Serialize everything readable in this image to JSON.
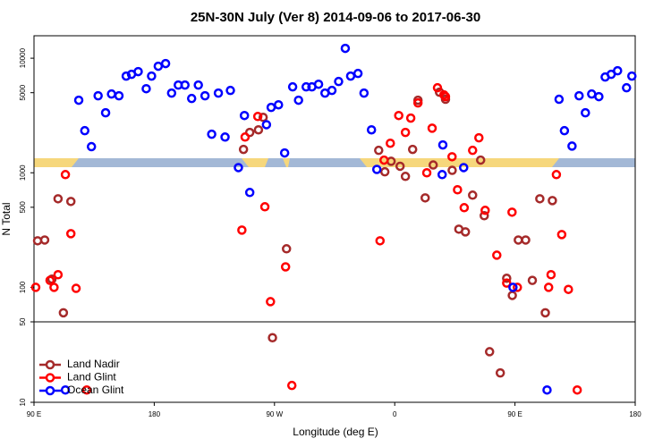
{
  "chart_data": {
    "type": "scatter",
    "title": "25N-30N July (Ver 8)   2014-09-06 to 2017-06-30",
    "x_label": "Longitude (deg E)",
    "y_label": "N Total",
    "xlim": [
      90,
      540
    ],
    "xticks": [
      {
        "value": 90,
        "label": "90 E"
      },
      180,
      {
        "value": 270,
        "label": "90 W"
      },
      {
        "value": 360,
        "label": "0"
      },
      {
        "value": 450,
        "label": "90 E"
      },
      {
        "value": 540,
        "label": "180"
      }
    ],
    "ylim": [
      50,
      15700
    ],
    "yticks": [
      50,
      100,
      500,
      1000,
      5000,
      10000
    ],
    "y_lower_lim": [
      10,
      50
    ],
    "y_lower_ticks": [
      10,
      50
    ],
    "log_scale": true,
    "legend": "bottom-left",
    "series": [
      {
        "name": "Land Nadir",
        "color": "#a52a2a",
        "x": [
          92.7,
          98,
          103.4,
          108,
          112,
          117.6,
          246.8,
          251.5,
          258,
          261.5,
          268.5,
          279,
          348,
          352.6,
          357.3,
          364,
          368,
          373.4,
          377.4,
          382.8,
          388.8,
          393.5,
          398,
          403,
          408,
          412.9,
          418.3,
          424.3,
          427,
          431,
          439,
          443.8,
          448,
          452.5,
          458,
          463,
          468.6,
          472.7,
          478
        ],
        "values": [
          255,
          259,
          118,
          593,
          60,
          562,
          1600,
          2250,
          2370,
          3050,
          36.4,
          217,
          1570,
          1020,
          1260,
          1140,
          930,
          1600,
          4300,
          604,
          1170,
          5050,
          4380,
          1050,
          322,
          305,
          638,
          1290,
          422,
          27.5,
          18,
          120,
          85,
          259,
          259,
          115,
          593,
          60,
          572
        ]
      },
      {
        "name": "Land Glint",
        "color": "#ff0000",
        "x": [
          91.3,
          102,
          105,
          108,
          113.5,
          117.6,
          121.5,
          129.5,
          245.6,
          248,
          257.5,
          262.8,
          267,
          278.3,
          283,
          349,
          352,
          356.7,
          363,
          368,
          372,
          377.4,
          384,
          388,
          392,
          396.8,
          398,
          402.9,
          407,
          412,
          418.3,
          423,
          427.7,
          436.4,
          443.8,
          447.8,
          451.8,
          475.2,
          477,
          481,
          485,
          490,
          496.6
        ],
        "values": [
          100,
          115,
          100,
          129,
          964,
          294,
          98,
          12.8,
          316,
          2050,
          3100,
          505,
          75,
          151,
          14,
          255,
          1290,
          1810,
          3160,
          2250,
          3000,
          4070,
          1000,
          2450,
          5520,
          4790,
          4620,
          1380,
          711,
          496,
          1570,
          2020,
          470,
          191,
          109,
          453,
          100,
          100,
          129,
          964,
          289,
          96,
          12.8
        ]
      },
      {
        "name": "Ocean Glint",
        "color": "#0000ff",
        "x": [
          113.5,
          123.5,
          128,
          133,
          138,
          143.6,
          148,
          153.6,
          159,
          163,
          168,
          174,
          178,
          183,
          188.5,
          193,
          198,
          203,
          208,
          213,
          218,
          223,
          228,
          233,
          237,
          243,
          247.5,
          251.5,
          264,
          267.5,
          273,
          277.6,
          283.6,
          288,
          293.7,
          298,
          303,
          307.8,
          313,
          318,
          323,
          327,
          332.5,
          337,
          342.6,
          346.6,
          395.5,
          396,
          411.6,
          448.5,
          474,
          483,
          487,
          492.7,
          498,
          502.7,
          507.4,
          512.8,
          517.5,
          522,
          526.8,
          533.5,
          537.5
        ],
        "values": [
          12.8,
          4300,
          2330,
          1690,
          4700,
          3340,
          4870,
          4700,
          6980,
          7230,
          7640,
          5420,
          6980,
          8510,
          8980,
          4960,
          5830,
          5830,
          4450,
          5830,
          4700,
          2170,
          4960,
          2050,
          5230,
          1110,
          3160,
          673,
          2630,
          3720,
          3920,
          1490,
          5620,
          4300,
          5620,
          5620,
          5930,
          4960,
          5230,
          6260,
          12190,
          6980,
          7360,
          4960,
          2370,
          1070,
          964,
          1750,
          1110,
          100,
          12.8,
          4380,
          2330,
          1710,
          4700,
          3340,
          4870,
          4620,
          6850,
          7230,
          7770,
          5520,
          6980
        ]
      }
    ]
  }
}
